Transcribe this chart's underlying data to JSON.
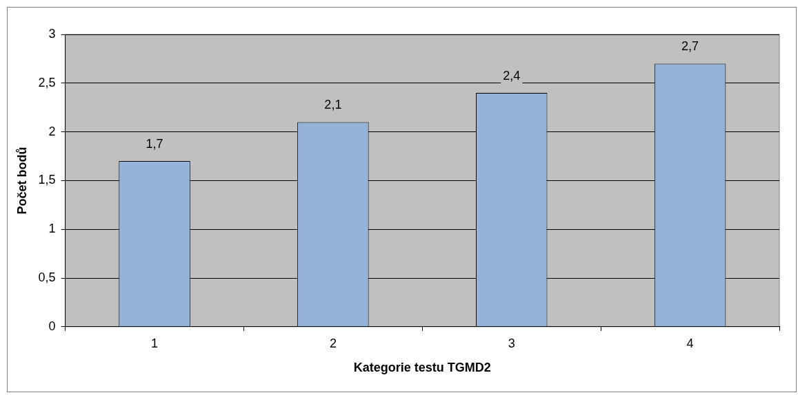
{
  "chart_data": {
    "type": "bar",
    "xlabel": "Kategorie testu TGMD2",
    "ylabel": "Počet bodů",
    "categories": [
      "1",
      "2",
      "3",
      "4"
    ],
    "values": [
      1.7,
      2.1,
      2.4,
      2.7
    ],
    "value_labels": [
      "1,7",
      "2,1",
      "2,4",
      "2,7"
    ],
    "color": "#95b3d7",
    "ylim": [
      0,
      3
    ],
    "yticks": [
      0,
      {
        "value": 0.5,
        "label": "0,5"
      },
      1,
      {
        "value": 1.5,
        "label": "1,5"
      },
      2,
      {
        "value": 2.5,
        "label": "2,5"
      },
      3
    ],
    "grid": "y",
    "legend": false
  }
}
